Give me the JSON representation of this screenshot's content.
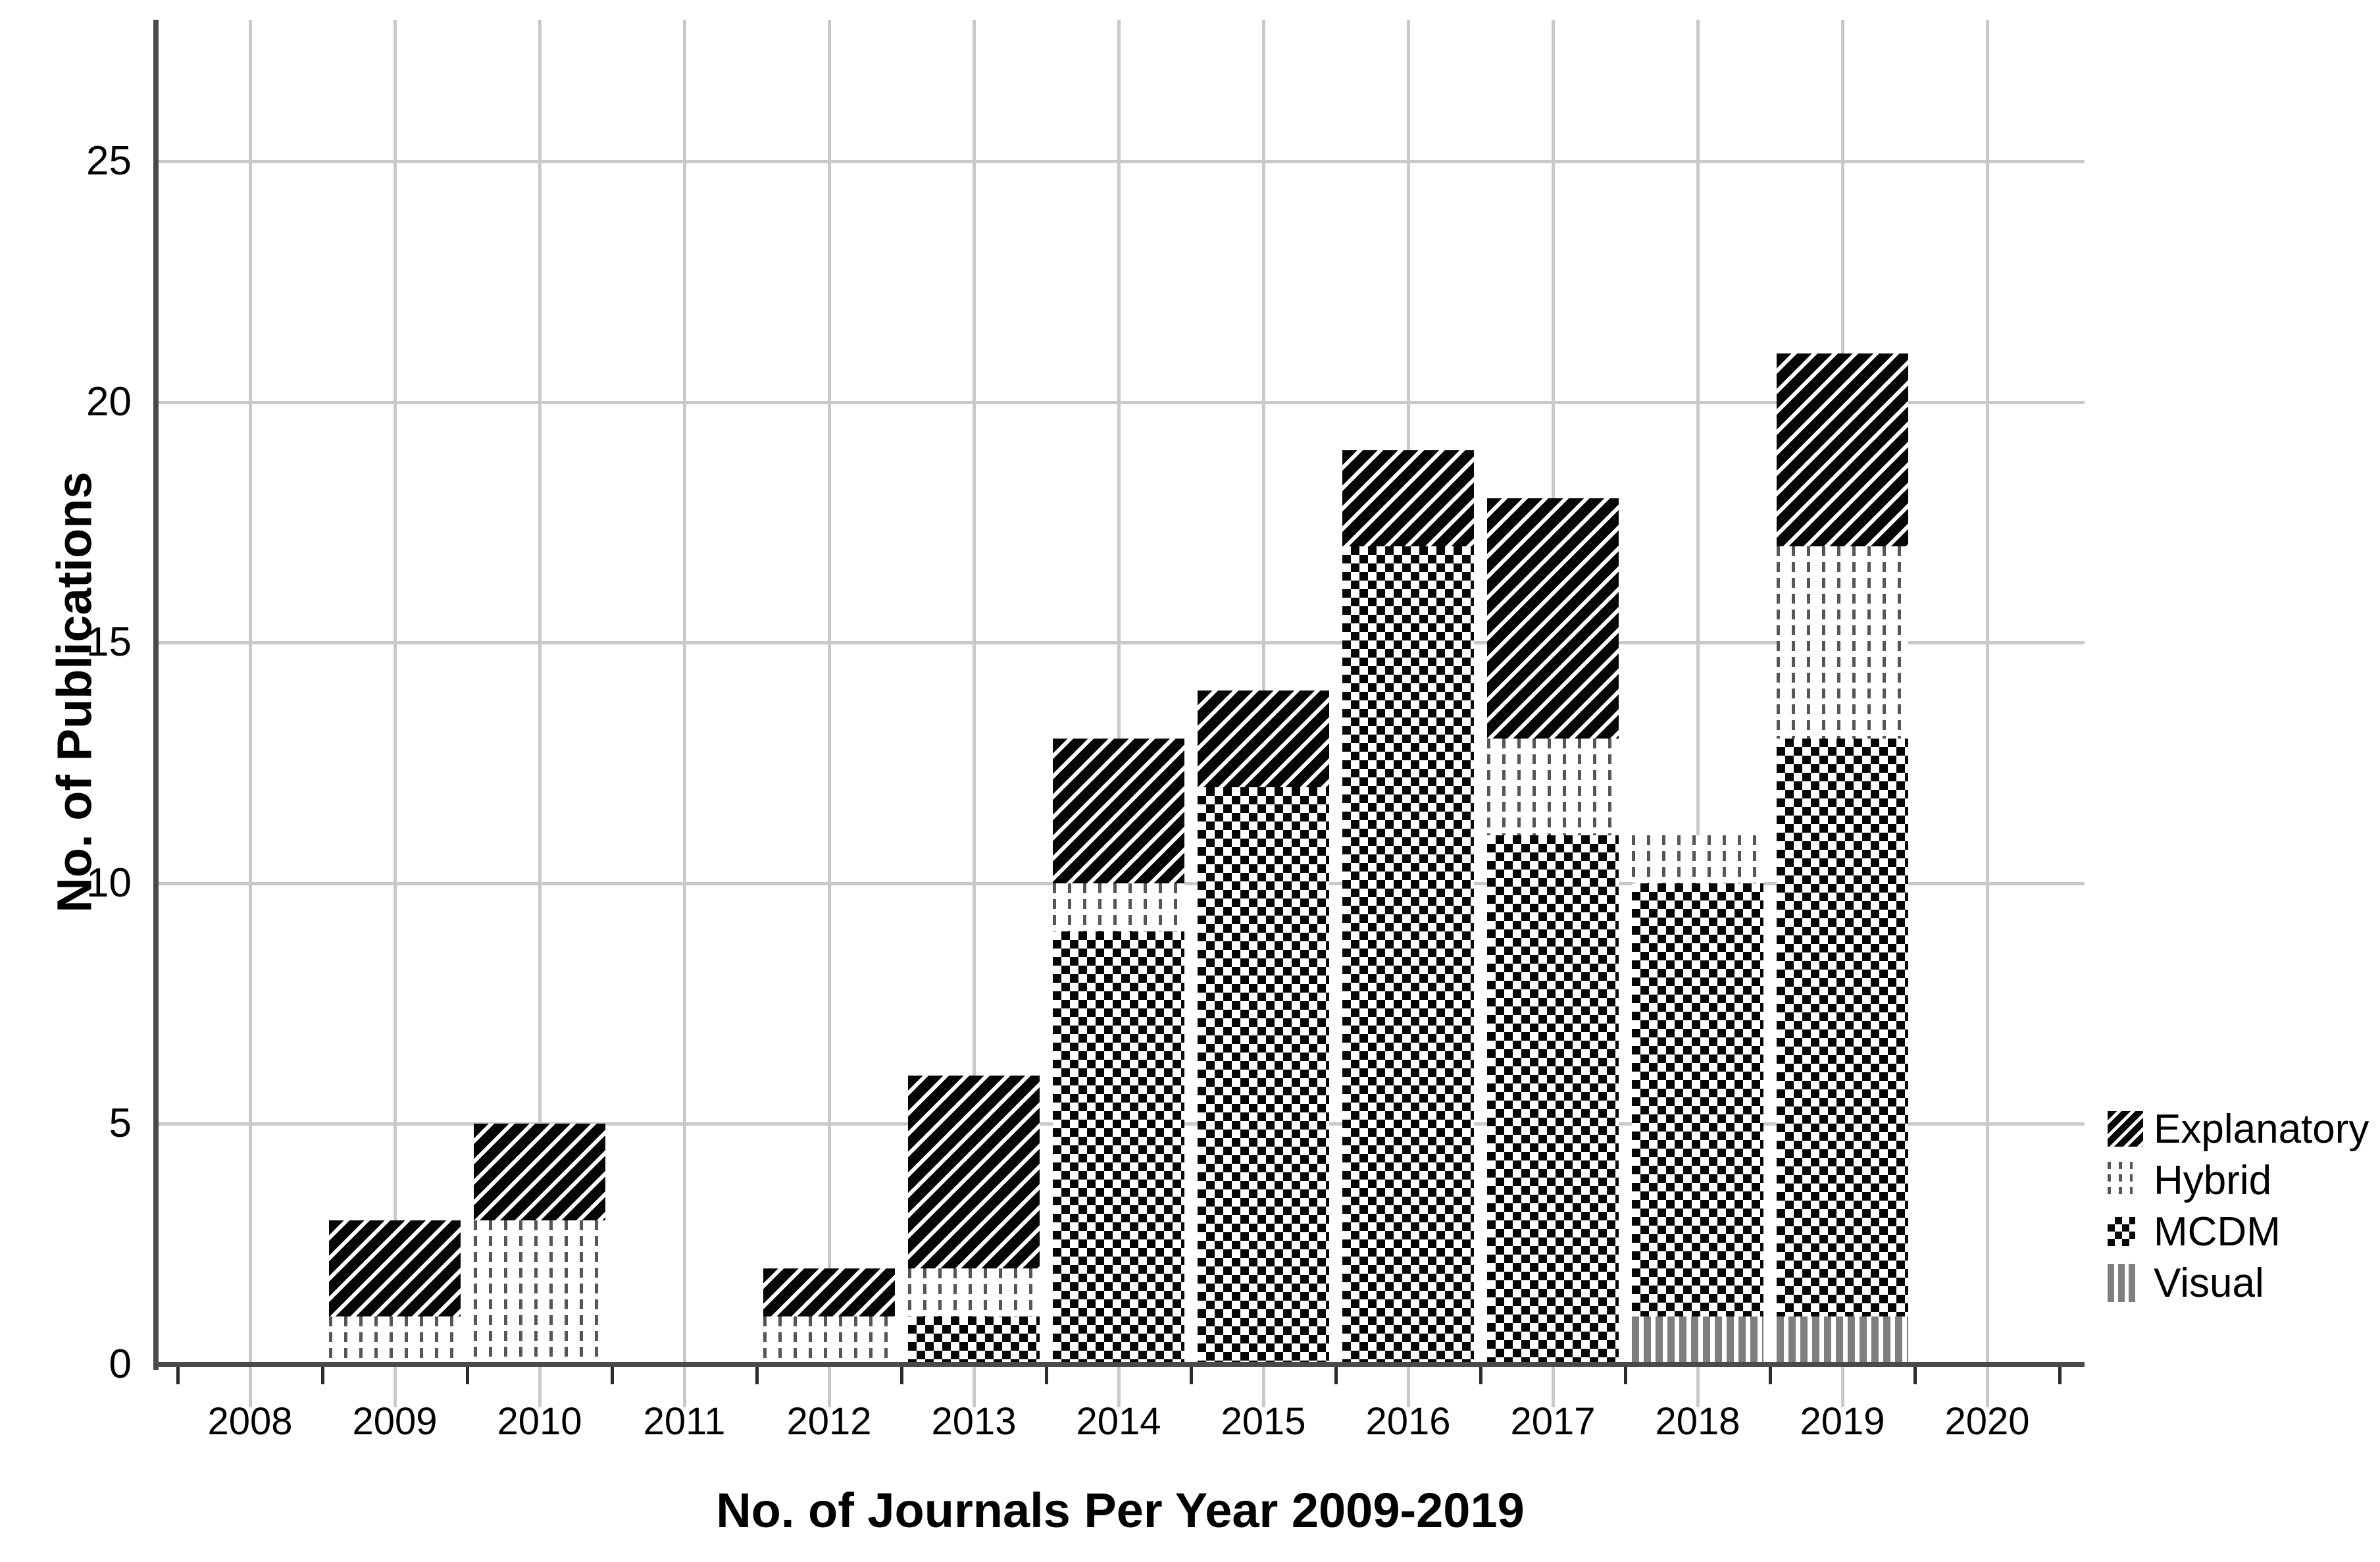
{
  "chart_data": {
    "type": "bar",
    "stacked": true,
    "title": "",
    "xlabel": "No. of Journals Per Year 2009-2019",
    "ylabel": "No. of Publications",
    "categories": [
      "2008",
      "2009",
      "2010",
      "2011",
      "2012",
      "2013",
      "2014",
      "2015",
      "2016",
      "2017",
      "2018",
      "2019",
      "2020"
    ],
    "series": [
      {
        "name": "Visual",
        "pattern": "visual",
        "values": [
          0,
          0,
          0,
          0,
          0,
          0,
          0,
          0,
          0,
          0,
          1,
          1,
          0
        ]
      },
      {
        "name": "MCDM",
        "pattern": "mcdm",
        "values": [
          0,
          0,
          0,
          0,
          0,
          1,
          9,
          12,
          17,
          11,
          9,
          12,
          0
        ]
      },
      {
        "name": "Hybrid",
        "pattern": "hybrid",
        "values": [
          0,
          1,
          3,
          0,
          1,
          1,
          1,
          0,
          0,
          2,
          1,
          4,
          0
        ]
      },
      {
        "name": "Explanatory",
        "pattern": "explanatory",
        "values": [
          0,
          2,
          2,
          0,
          1,
          4,
          3,
          2,
          2,
          5,
          0,
          4,
          0
        ]
      }
    ],
    "totals": [
      0,
      3,
      5,
      0,
      2,
      6,
      13,
      14,
      19,
      18,
      11,
      21,
      0
    ],
    "y_ticks": [
      0,
      5,
      10,
      15,
      20,
      25
    ],
    "ylim": [
      0,
      28
    ],
    "grid": true,
    "legend": {
      "position": "right",
      "entries": [
        {
          "label": "Explanatory",
          "pattern": "explanatory",
          "swatch_icon": "diagonal-stripes-swatch"
        },
        {
          "label": "Hybrid",
          "pattern": "hybrid",
          "swatch_icon": "dashed-vertical-lines-swatch"
        },
        {
          "label": "MCDM",
          "pattern": "mcdm",
          "swatch_icon": "checkerboard-swatch"
        },
        {
          "label": "Visual",
          "pattern": "visual",
          "swatch_icon": "gray-vertical-bars-swatch"
        }
      ]
    },
    "colors": {
      "pattern_black": "#060606",
      "visual_gray": "#7f7f7f",
      "hybrid_dash_gray": "#565656",
      "axis": "#4a4a4a",
      "gridline": "#c9c9c9",
      "background": "#ffffff",
      "text": "#000000"
    }
  }
}
